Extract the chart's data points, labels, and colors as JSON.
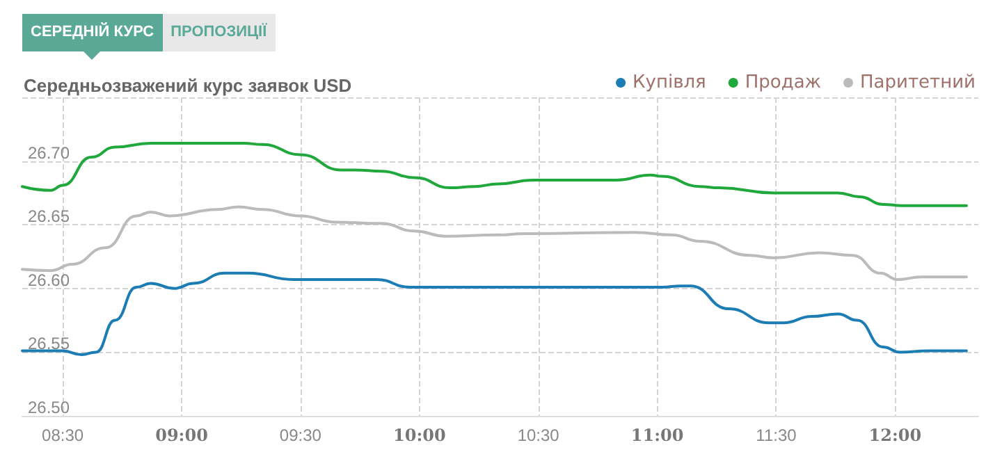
{
  "chart_data": {
    "type": "line",
    "title": "Середньозважений курс заявок USD",
    "annotations": [
      "СЕРЕДНІЙ КУРС",
      "ПРОПОЗИЦІЇ"
    ],
    "series": [
      {
        "name": "Купівля",
        "color": "#1b7db4",
        "x": [
          8.33,
          8.5,
          8.58,
          8.64,
          8.72,
          8.81,
          8.87,
          8.97,
          9.05,
          9.18,
          9.28,
          9.47,
          9.82,
          9.96,
          10.33,
          11.02,
          11.1,
          11.14,
          11.3,
          11.47,
          11.53,
          11.65,
          11.76,
          11.84,
          11.95,
          12.02,
          12.14,
          12.3
        ],
        "values": [
          26.551,
          26.551,
          26.548,
          26.55,
          26.575,
          26.601,
          26.604,
          26.6,
          26.604,
          26.612,
          26.612,
          26.607,
          26.607,
          26.601,
          26.601,
          26.601,
          26.602,
          26.602,
          26.584,
          26.573,
          26.573,
          26.578,
          26.58,
          26.575,
          26.554,
          26.55,
          26.551,
          26.551
        ]
      },
      {
        "name": "Продаж",
        "color": "#21a83c",
        "x": [
          8.33,
          8.45,
          8.5,
          8.62,
          8.72,
          8.87,
          9.26,
          9.34,
          9.5,
          9.67,
          9.73,
          9.84,
          9.98,
          10.13,
          10.23,
          10.33,
          10.48,
          10.83,
          10.97,
          11.02,
          11.18,
          11.26,
          11.49,
          11.76,
          11.85,
          11.95,
          12.03,
          12.3
        ],
        "values": [
          26.68,
          26.677,
          26.681,
          26.703,
          26.711,
          26.714,
          26.714,
          26.713,
          26.705,
          26.693,
          26.693,
          26.692,
          26.687,
          26.679,
          26.68,
          26.682,
          26.685,
          26.685,
          26.689,
          26.688,
          26.68,
          26.679,
          26.675,
          26.675,
          26.672,
          26.666,
          26.665,
          26.665
        ]
      },
      {
        "name": "Паритетний",
        "color": "#bbbbbb",
        "x": [
          8.33,
          8.45,
          8.54,
          8.68,
          8.81,
          8.87,
          8.95,
          9.15,
          9.24,
          9.34,
          9.5,
          9.65,
          9.84,
          9.98,
          10.11,
          10.33,
          10.44,
          10.91,
          11.06,
          11.18,
          11.39,
          11.49,
          11.68,
          11.82,
          11.94,
          12.01,
          12.11,
          12.3
        ],
        "values": [
          26.615,
          26.614,
          26.619,
          26.632,
          26.657,
          26.66,
          26.657,
          26.662,
          26.664,
          26.662,
          26.657,
          26.652,
          26.651,
          26.645,
          26.641,
          26.642,
          26.643,
          26.644,
          26.642,
          26.637,
          26.626,
          26.624,
          26.628,
          26.626,
          26.612,
          26.607,
          26.609,
          26.609
        ]
      }
    ],
    "xlim": [
      8.33,
      12.35
    ],
    "xticks": [
      {
        "value": 8.5,
        "label": "08:30"
      },
      {
        "value": 9,
        "label": "09:00"
      },
      {
        "value": 9.5,
        "label": "09:30"
      },
      {
        "value": 10,
        "label": "10:00"
      },
      {
        "value": 10.5,
        "label": "10:30"
      },
      {
        "value": 11,
        "label": "11:00"
      },
      {
        "value": 11.5,
        "label": "11:30"
      },
      {
        "value": 12,
        "label": "12:00"
      }
    ],
    "ylim": [
      26.5,
      26.75
    ],
    "yticks": [
      {
        "value": 26.5,
        "label": "26.50"
      },
      {
        "value": 26.55,
        "label": "26.55"
      },
      {
        "value": 26.6,
        "label": "26.60"
      },
      {
        "value": 26.65,
        "label": "26.65"
      },
      {
        "value": 26.7,
        "label": "26.70"
      },
      {
        "value": 26.75,
        "label": null
      }
    ],
    "grid": true,
    "legend": "top right",
    "marker": "none",
    "line_style": "solid"
  }
}
